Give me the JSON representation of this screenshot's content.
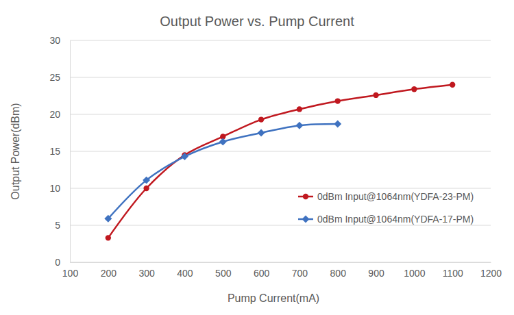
{
  "chart_data": {
    "type": "line",
    "title": "Output Power vs. Pump Current",
    "x_label": "Pump Current(mA)",
    "y_label": "Output Power(dBm)",
    "xlim": [
      100,
      1200
    ],
    "xticks": [
      100,
      200,
      300,
      400,
      500,
      600,
      700,
      800,
      900,
      1000,
      1100,
      1200
    ],
    "ylim": [
      0,
      30
    ],
    "yticks": [
      0,
      5,
      10,
      15,
      20,
      25,
      30
    ],
    "grid": true,
    "legend": "right",
    "series": [
      {
        "name": "0dBm Input@1064nm(YDFA-23-PM)",
        "color": "#c0181f",
        "marker": "circle",
        "line_style": "smooth",
        "x": [
          200,
          300,
          400,
          500,
          600,
          700,
          800,
          900,
          1000,
          1100
        ],
        "values": [
          3.3,
          10.0,
          14.5,
          17.0,
          19.3,
          20.7,
          21.8,
          22.6,
          23.4,
          24.0
        ]
      },
      {
        "name": "0dBm Input@1064nm(YDFA-17-PM)",
        "color": "#3f72c0",
        "marker": "diamond",
        "line_style": "smooth",
        "x": [
          200,
          300,
          400,
          500,
          600,
          700,
          800
        ],
        "values": [
          5.9,
          11.1,
          14.3,
          16.3,
          17.5,
          18.5,
          18.7
        ]
      }
    ]
  }
}
